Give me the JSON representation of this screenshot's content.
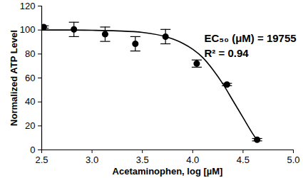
{
  "chart_data": {
    "type": "scatter",
    "x_label": "Acetaminophen, log [µM]",
    "y_label": "Normalized ATP Level",
    "xlim": [
      2.5,
      5.0
    ],
    "xticks": [
      2.5,
      {
        "value": 3,
        "label": "3.0"
      },
      3.5,
      {
        "value": 4,
        "label": "4.0"
      },
      4.5,
      {
        "value": 5,
        "label": "5.0"
      }
    ],
    "ylim": [
      0,
      120
    ],
    "yticks": [
      0,
      20,
      40,
      60,
      80,
      100,
      120
    ],
    "x": [
      2.52,
      2.82,
      3.13,
      3.43,
      3.73,
      4.04,
      4.34,
      4.64
    ],
    "values": [
      102.5,
      100.5,
      96.5,
      88.5,
      94.5,
      72,
      54.5,
      8.5
    ],
    "error": [
      1,
      6,
      6,
      6,
      6,
      3,
      1,
      1
    ],
    "fit": {
      "x": [
        2.5,
        2.75,
        3.0,
        3.25,
        3.5,
        3.75,
        3.9,
        4.0,
        4.1,
        4.2,
        4.3,
        4.4,
        4.5,
        4.6,
        4.64
      ],
      "values": [
        100,
        100,
        99.8,
        99.3,
        98,
        94,
        89,
        84,
        77,
        67,
        55,
        41,
        27,
        13,
        8
      ]
    },
    "annotations": [
      "EC₅₀ (μM) = 19755",
      "R² = 0.94"
    ],
    "color": "#000000",
    "marker": "circle",
    "grid": false
  }
}
